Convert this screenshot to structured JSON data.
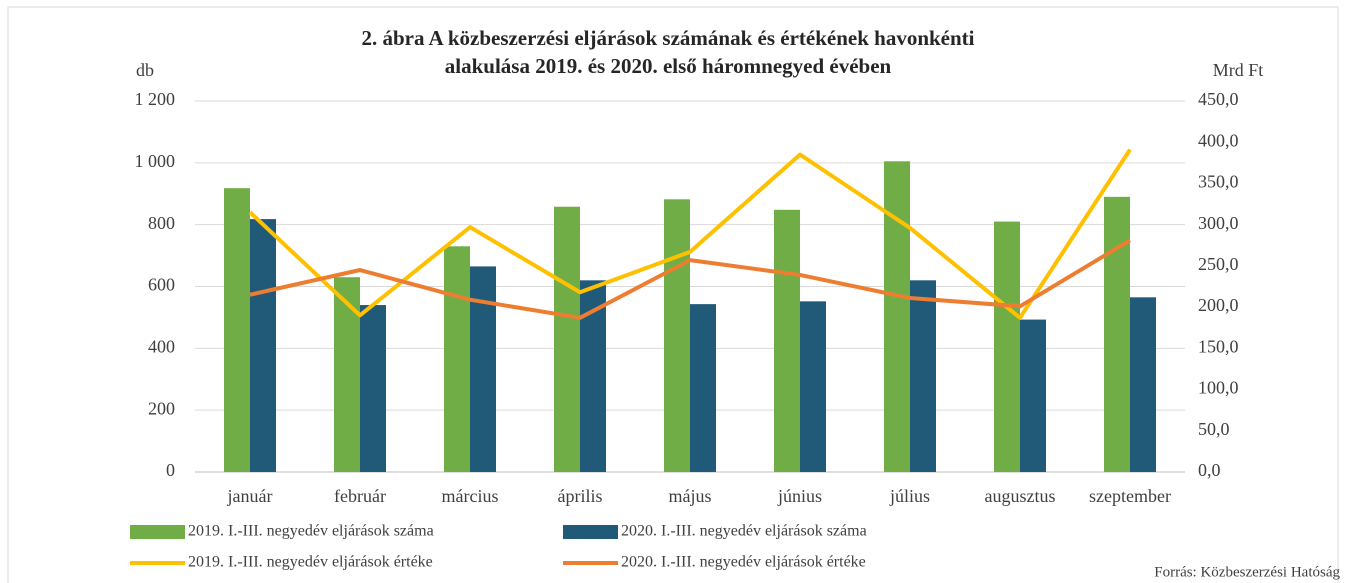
{
  "chart_data": {
    "type": "bar_line",
    "title": [
      "2. ábra A közbeszerzési eljárások számának és értékének havonkénti",
      "alakulása 2019. és 2020. első háromnegyed évében"
    ],
    "y_label": "db",
    "y2_label": "Mrd Ft",
    "source": "Forrás: Közbeszerzési Hatóság",
    "categories": [
      "január",
      "február",
      "március",
      "április",
      "május",
      "június",
      "július",
      "augusztus",
      "szeptember"
    ],
    "series": [
      {
        "name": "2019. I.-III. negyedév eljárások száma",
        "type": "bar",
        "color": "#70ad47",
        "values": [
          918,
          630,
          730,
          858,
          882,
          848,
          1005,
          810,
          890
        ]
      },
      {
        "name": "2020. I.-III. negyedév eljárások száma",
        "type": "bar",
        "color": "#215a78",
        "values": [
          818,
          540,
          665,
          620,
          543,
          552,
          620,
          493,
          565
        ]
      },
      {
        "name": "2019. I.-III. negyedév eljárások értéke",
        "type": "line",
        "axis": "y2",
        "color": "#ffc000",
        "values": [
          315,
          190,
          297,
          218,
          267,
          385,
          296,
          187,
          391
        ]
      },
      {
        "name": "2020. I.-III. negyedév eljárások értéke",
        "type": "line",
        "axis": "y2",
        "color": "#ed7d31",
        "values": [
          215,
          245,
          209,
          187,
          257,
          239,
          211,
          201,
          281
        ]
      }
    ],
    "ylim": [
      0,
      1200
    ],
    "yticks": [
      0,
      200,
      400,
      600,
      800,
      {
        "value": 1000,
        "label": "1 000"
      },
      {
        "value": 1200,
        "label": "1 200"
      }
    ],
    "y2lim": [
      0,
      450
    ],
    "y2ticks": [
      {
        "value": 0,
        "label": "0,0"
      },
      {
        "value": 50,
        "label": "50,0"
      },
      {
        "value": 100,
        "label": "100,0"
      },
      {
        "value": 150,
        "label": "150,0"
      },
      {
        "value": 200,
        "label": "200,0"
      },
      {
        "value": 250,
        "label": "250,0"
      },
      {
        "value": 300,
        "label": "300,0"
      },
      {
        "value": 350,
        "label": "350,0"
      },
      {
        "value": 400,
        "label": "400,0"
      },
      {
        "value": 450,
        "label": "450,0"
      }
    ],
    "grid": true
  }
}
